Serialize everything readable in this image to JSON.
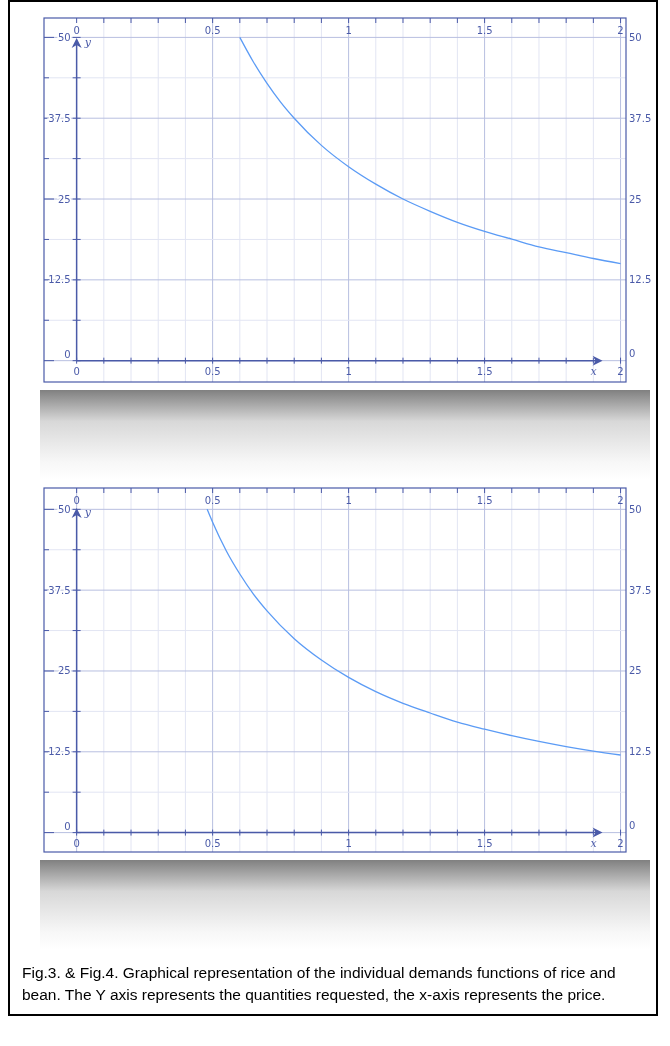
{
  "chart_data": [
    {
      "type": "line",
      "xlabel": "x",
      "ylabel": "y",
      "xlim": [
        -0.12,
        2.02
      ],
      "ylim": [
        -3.3,
        53
      ],
      "x2lim": [
        -0.12,
        2.02
      ],
      "y2lim": [
        -3.3,
        53
      ],
      "xticks": [
        0,
        {
          "value": 0.1,
          "label": null
        },
        {
          "value": 0.2,
          "label": null
        },
        {
          "value": 0.3,
          "label": null
        },
        {
          "value": 0.4,
          "label": null
        },
        0.5,
        {
          "value": 0.6,
          "label": null
        },
        {
          "value": 0.7,
          "label": null
        },
        {
          "value": 0.8,
          "label": null
        },
        {
          "value": 0.9,
          "label": null
        },
        1,
        {
          "value": 1.1,
          "label": null
        },
        {
          "value": 1.2,
          "label": null
        },
        {
          "value": 1.3,
          "label": null
        },
        {
          "value": 1.4,
          "label": null
        },
        1.5,
        {
          "value": 1.6,
          "label": null
        },
        {
          "value": 1.7,
          "label": null
        },
        {
          "value": 1.8,
          "label": null
        },
        {
          "value": 1.9,
          "label": null
        },
        2
      ],
      "x2ticks": [
        0,
        0.5,
        1,
        1.5,
        2
      ],
      "yticks": [
        0,
        {
          "value": 6.25,
          "label": null
        },
        12.5,
        {
          "value": 18.75,
          "label": null
        },
        25,
        {
          "value": 31.25,
          "label": null
        },
        37.5,
        {
          "value": 43.75,
          "label": null
        },
        50
      ],
      "y2ticks": [
        0,
        12.5,
        25,
        37.5,
        50
      ],
      "grid": true,
      "marker": "none",
      "line_style": "solid",
      "ref_lines": [
        {
          "axis": "x",
          "value": 0
        }
      ],
      "series": [
        {
          "color": "#5b9bf5",
          "x": [
            0.6,
            0.65,
            0.7,
            0.75,
            0.8,
            0.9,
            1,
            1.1,
            1.2,
            1.3,
            1.4,
            1.5,
            1.6,
            1.7,
            1.8,
            1.9,
            2
          ],
          "values": [
            50,
            46.2,
            42.9,
            40,
            37.5,
            33.3,
            30,
            27.3,
            25,
            23.1,
            21.4,
            20,
            18.8,
            17.6,
            16.7,
            15.8,
            15
          ]
        }
      ]
    },
    {
      "type": "line",
      "xlabel": "x",
      "ylabel": "y",
      "xlim": [
        -0.12,
        2.02
      ],
      "ylim": [
        -3,
        53.3
      ],
      "x2lim": [
        -0.12,
        2.02
      ],
      "y2lim": [
        -3,
        53.3
      ],
      "xticks": [
        0,
        {
          "value": 0.1,
          "label": null
        },
        {
          "value": 0.2,
          "label": null
        },
        {
          "value": 0.3,
          "label": null
        },
        {
          "value": 0.4,
          "label": null
        },
        0.5,
        {
          "value": 0.6,
          "label": null
        },
        {
          "value": 0.7,
          "label": null
        },
        {
          "value": 0.8,
          "label": null
        },
        {
          "value": 0.9,
          "label": null
        },
        1,
        {
          "value": 1.1,
          "label": null
        },
        {
          "value": 1.2,
          "label": null
        },
        {
          "value": 1.3,
          "label": null
        },
        {
          "value": 1.4,
          "label": null
        },
        1.5,
        {
          "value": 1.6,
          "label": null
        },
        {
          "value": 1.7,
          "label": null
        },
        {
          "value": 1.8,
          "label": null
        },
        {
          "value": 1.9,
          "label": null
        },
        2
      ],
      "x2ticks": [
        0,
        0.5,
        1,
        1.5,
        2
      ],
      "yticks": [
        0,
        {
          "value": 6.25,
          "label": null
        },
        12.5,
        {
          "value": 18.75,
          "label": null
        },
        25,
        {
          "value": 31.25,
          "label": null
        },
        37.5,
        {
          "value": 43.75,
          "label": null
        },
        50
      ],
      "y2ticks": [
        0,
        12.5,
        25,
        37.5,
        50
      ],
      "grid": true,
      "marker": "none",
      "line_style": "solid",
      "series": [
        {
          "color": "#5b9bf5",
          "x": [
            0.48,
            0.5,
            0.55,
            0.6,
            0.65,
            0.7,
            0.8,
            0.9,
            1,
            1.1,
            1.2,
            1.3,
            1.4,
            1.5,
            1.6,
            1.7,
            1.8,
            1.9,
            2
          ],
          "values": [
            50,
            48,
            43.6,
            40,
            36.9,
            34.3,
            30,
            26.7,
            24,
            21.8,
            20,
            18.5,
            17.1,
            16,
            15,
            14.1,
            13.3,
            12.6,
            12
          ]
        }
      ],
      "annotations": [
        "Fig.3.  & Fig.4. Graphical representation of the individual demands functions of rice and bean. The Y axis represents the quantities requested, the x-axis represents the price."
      ]
    }
  ]
}
